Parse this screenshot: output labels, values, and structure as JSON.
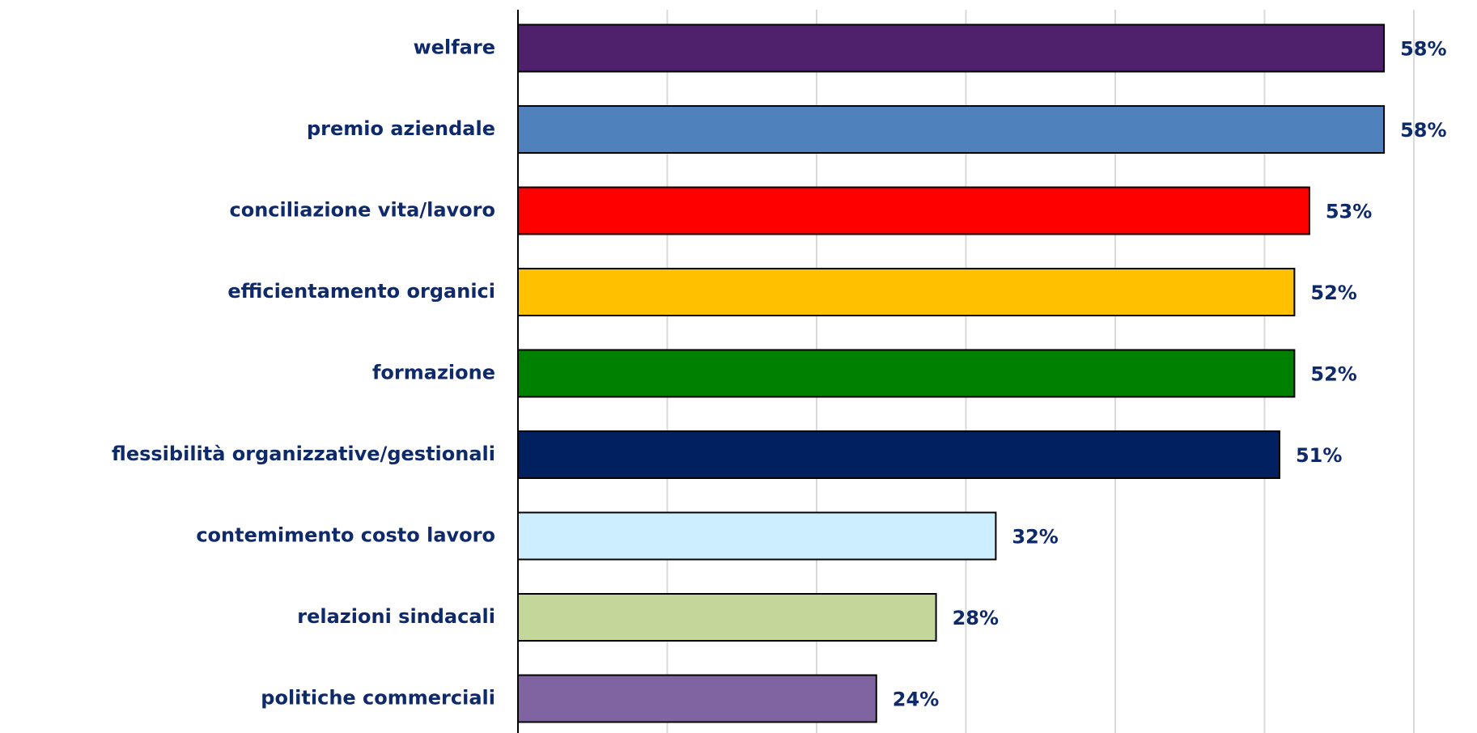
{
  "chart_data": {
    "type": "barh",
    "categories": [
      "welfare",
      "premio aziendale",
      "conciliazione vita/lavoro",
      "efficientamento organici",
      "formazione",
      "flessibilità organizzative/gestionali",
      "contemimento costo lavoro",
      "relazioni sindacali",
      "politiche commerciali"
    ],
    "values": [
      58,
      58,
      53,
      52,
      52,
      51,
      32,
      28,
      24
    ],
    "value_labels": [
      "58%",
      "58%",
      "53%",
      "52%",
      "52%",
      "51%",
      "32%",
      "28%",
      "24%"
    ],
    "colors": [
      "#4f216c",
      "#4f81bd",
      "#ff0000",
      "#ffc000",
      "#008000",
      "#002060",
      "#cceeff",
      "#c4d79b",
      "#8064a2"
    ],
    "xlim": [
      0,
      60
    ],
    "xticks": [
      0,
      10,
      20,
      30,
      40,
      50,
      60
    ],
    "grid": true
  }
}
